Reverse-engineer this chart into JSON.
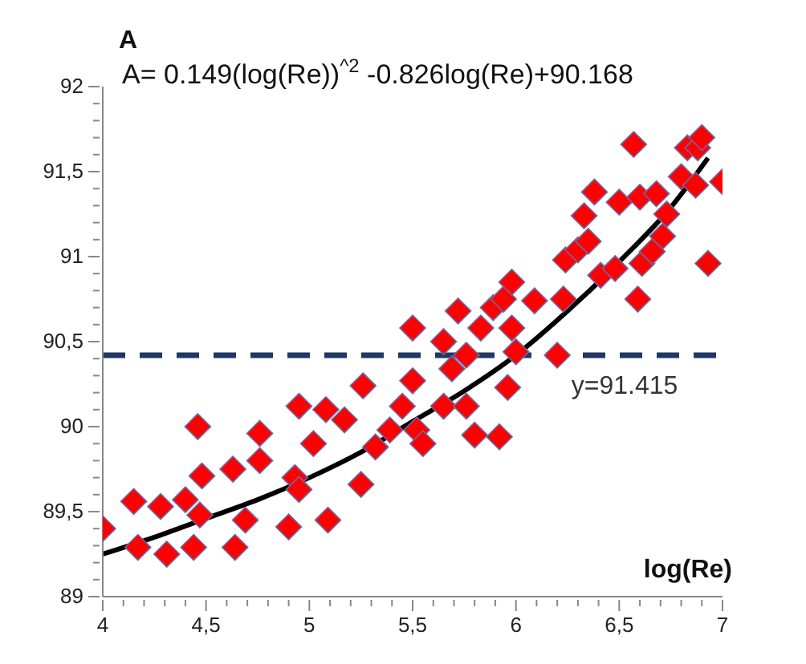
{
  "chart_data": {
    "type": "scatter",
    "title": "A",
    "xlabel": "log(Re)",
    "annotations": [
      "A= 0.149(log(Re))$^{^2}$-0.826log(Re)+90.168",
      {
        "text": "y=91.415",
        "x": 6.5,
        "y": 90.42
      }
    ],
    "xlim": [
      4,
      7
    ],
    "ylim": [
      89,
      92
    ],
    "xticks": [
      {
        "value": 4,
        "label": "4"
      },
      {
        "value": 4.1,
        "label": null
      },
      {
        "value": 4.2,
        "label": null
      },
      {
        "value": 4.3,
        "label": null
      },
      {
        "value": 4.4,
        "label": null
      },
      {
        "value": 4.5,
        "label": "4,5"
      },
      {
        "value": 4.6,
        "label": null
      },
      {
        "value": 4.7,
        "label": null
      },
      {
        "value": 4.8,
        "label": null
      },
      {
        "value": 4.9,
        "label": null
      },
      {
        "value": 5,
        "label": "5"
      },
      {
        "value": 5.1,
        "label": null
      },
      {
        "value": 5.2,
        "label": null
      },
      {
        "value": 5.3,
        "label": null
      },
      {
        "value": 5.4,
        "label": null
      },
      {
        "value": 5.5,
        "label": "5,5"
      },
      {
        "value": 5.6,
        "label": null
      },
      {
        "value": 5.7,
        "label": null
      },
      {
        "value": 5.8,
        "label": null
      },
      {
        "value": 5.9,
        "label": null
      },
      {
        "value": 6,
        "label": "6"
      },
      {
        "value": 6.1,
        "label": null
      },
      {
        "value": 6.2,
        "label": null
      },
      {
        "value": 6.3,
        "label": null
      },
      {
        "value": 6.4,
        "label": null
      },
      {
        "value": 6.5,
        "label": "6,5"
      },
      {
        "value": 6.6,
        "label": null
      },
      {
        "value": 6.7,
        "label": null
      },
      {
        "value": 6.8,
        "label": null
      },
      {
        "value": 6.9,
        "label": null
      },
      {
        "value": 7,
        "label": "7"
      }
    ],
    "yticks": [
      {
        "value": 89,
        "label": "89"
      },
      {
        "value": 89.1,
        "label": null
      },
      {
        "value": 89.2,
        "label": null
      },
      {
        "value": 89.3,
        "label": null
      },
      {
        "value": 89.4,
        "label": null
      },
      {
        "value": 89.5,
        "label": "89,5"
      },
      {
        "value": 89.6,
        "label": null
      },
      {
        "value": 89.7,
        "label": null
      },
      {
        "value": 89.8,
        "label": null
      },
      {
        "value": 89.9,
        "label": null
      },
      {
        "value": 90,
        "label": "90"
      },
      {
        "value": 90.1,
        "label": null
      },
      {
        "value": 90.2,
        "label": null
      },
      {
        "value": 90.3,
        "label": null
      },
      {
        "value": 90.4,
        "label": null
      },
      {
        "value": 90.5,
        "label": "90,5"
      },
      {
        "value": 90.6,
        "label": null
      },
      {
        "value": 90.7,
        "label": null
      },
      {
        "value": 90.8,
        "label": null
      },
      {
        "value": 90.9,
        "label": null
      },
      {
        "value": 91,
        "label": "91"
      },
      {
        "value": 91.1,
        "label": null
      },
      {
        "value": 91.2,
        "label": null
      },
      {
        "value": 91.3,
        "label": null
      },
      {
        "value": 91.4,
        "label": null
      },
      {
        "value": 91.5,
        "label": "91,5"
      },
      {
        "value": 91.6,
        "label": null
      },
      {
        "value": 91.7,
        "label": null
      },
      {
        "value": 91.8,
        "label": null
      },
      {
        "value": 91.9,
        "label": null
      },
      {
        "value": 92,
        "label": "92"
      }
    ],
    "marker": "diamond",
    "ref_lines": [
      {
        "axis": "y",
        "value": 90.42,
        "color": "#1f3864",
        "line_style": "dashed"
      }
    ],
    "series": [
      {
        "color": "#ff0000",
        "x": [
          4.0,
          4.15,
          4.17,
          4.28,
          4.31,
          4.4,
          4.44,
          4.46,
          4.48,
          4.47,
          4.63,
          4.64,
          4.69,
          4.76,
          4.76,
          4.9,
          4.93,
          4.95,
          4.95,
          5.02,
          5.08,
          5.09,
          5.17,
          5.25,
          5.26,
          5.32,
          5.39,
          5.45,
          5.5,
          5.5,
          5.52,
          5.55,
          5.65,
          5.65,
          5.69,
          5.72,
          5.76,
          5.76,
          5.8,
          5.83,
          5.89,
          5.92,
          5.94,
          5.96,
          5.98,
          5.98,
          6.0,
          6.09,
          6.2,
          6.24,
          6.23,
          6.3,
          6.35,
          6.38,
          6.33,
          6.41,
          6.48,
          6.5,
          6.57,
          6.6,
          6.59,
          6.61,
          6.66,
          6.73,
          6.68,
          6.71,
          6.8,
          6.83,
          6.87,
          6.88,
          6.9,
          6.93,
          7.0
        ],
        "values": [
          89.4,
          89.56,
          89.29,
          89.53,
          89.25,
          89.57,
          89.29,
          90.0,
          89.71,
          89.48,
          89.75,
          89.29,
          89.45,
          89.96,
          89.8,
          89.41,
          89.7,
          90.12,
          89.63,
          89.9,
          90.1,
          89.45,
          90.04,
          89.66,
          90.24,
          89.88,
          89.98,
          90.12,
          90.27,
          90.58,
          89.98,
          89.9,
          90.12,
          90.5,
          90.34,
          90.68,
          90.42,
          90.12,
          89.95,
          90.58,
          90.7,
          89.94,
          90.75,
          90.23,
          90.85,
          90.58,
          90.44,
          90.74,
          90.42,
          90.98,
          90.75,
          91.04,
          91.09,
          91.38,
          91.24,
          90.89,
          90.93,
          91.32,
          91.66,
          91.35,
          90.75,
          90.96,
          91.03,
          91.25,
          91.37,
          91.12,
          91.47,
          91.64,
          91.42,
          91.64,
          91.7,
          90.96,
          91.44
        ]
      },
      {
        "type": "line",
        "color": "#000000",
        "marker": "none",
        "x": [
          4.0,
          4.25,
          4.5,
          4.75,
          5.0,
          5.25,
          5.5,
          5.75,
          6.0,
          6.25,
          6.5,
          6.75,
          6.93
        ],
        "values": [
          89.25,
          89.35,
          89.46,
          89.57,
          89.7,
          89.85,
          90.03,
          90.21,
          90.42,
          90.68,
          90.97,
          91.29,
          91.58
        ]
      }
    ]
  }
}
